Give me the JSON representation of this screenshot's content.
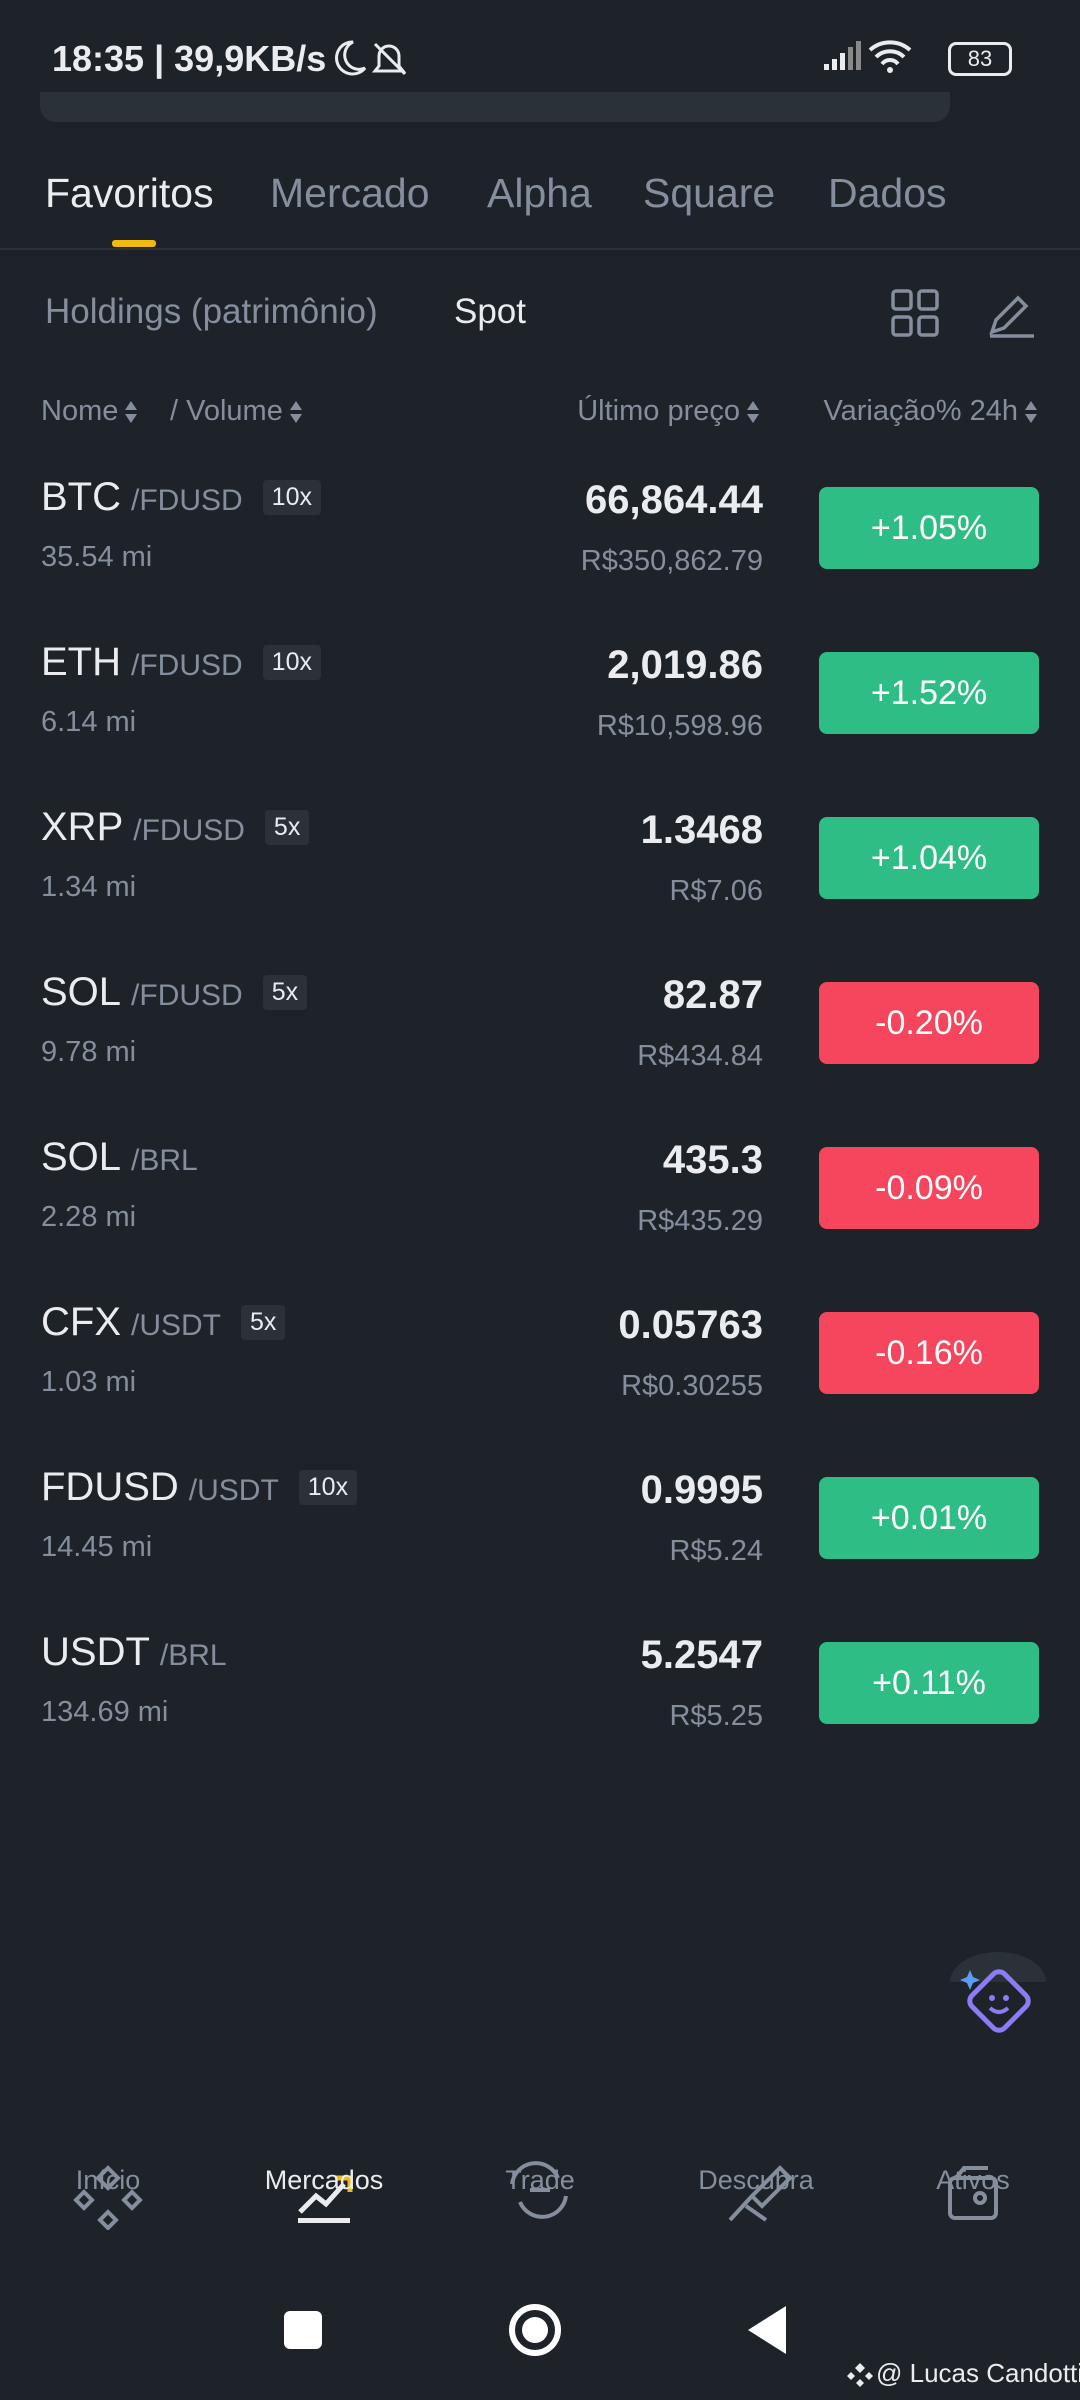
{
  "status_bar": {
    "time_speed": "18:35 | 39,9KB/s",
    "battery": "83"
  },
  "tabs": [
    "Favoritos",
    "Mercado",
    "Alpha",
    "Square",
    "Dados"
  ],
  "subtabs": [
    "Holdings (patrimônio)",
    "Spot"
  ],
  "columns": {
    "name": "Nome",
    "volume": "/ Volume",
    "price": "Último preço",
    "change": "Variação% 24h"
  },
  "rows": [
    {
      "base": "BTC",
      "quote": "/FDUSD",
      "leverage": "10x",
      "volume": "35.54 mi",
      "price": "66,864.44",
      "fiat": "R$350,862.79",
      "change": "+1.05%"
    },
    {
      "base": "ETH",
      "quote": "/FDUSD",
      "leverage": "10x",
      "volume": "6.14 mi",
      "price": "2,019.86",
      "fiat": "R$10,598.96",
      "change": "+1.52%"
    },
    {
      "base": "XRP",
      "quote": "/FDUSD",
      "leverage": "5x",
      "volume": "1.34 mi",
      "price": "1.3468",
      "fiat": "R$7.06",
      "change": "+1.04%"
    },
    {
      "base": "SOL",
      "quote": "/FDUSD",
      "leverage": "5x",
      "volume": "9.78 mi",
      "price": "82.87",
      "fiat": "R$434.84",
      "change": "-0.20%"
    },
    {
      "base": "SOL",
      "quote": "/BRL",
      "volume": "2.28 mi",
      "price": "435.3",
      "fiat": "R$435.29",
      "change": "-0.09%"
    },
    {
      "base": "CFX",
      "quote": "/USDT",
      "leverage": "5x",
      "volume": "1.03 mi",
      "price": "0.05763",
      "fiat": "R$0.30255",
      "change": "-0.16%"
    },
    {
      "base": "FDUSD",
      "quote": "/USDT",
      "leverage": "10x",
      "volume": "14.45 mi",
      "price": "0.9995",
      "fiat": "R$5.24",
      "change": "+0.01%"
    },
    {
      "base": "USDT",
      "quote": "/BRL",
      "volume": "134.69 mi",
      "price": "5.2547",
      "fiat": "R$5.25",
      "change": "+0.11%"
    }
  ],
  "bottom_nav": [
    "Início",
    "Mercados",
    "Trade",
    "Descubra",
    "Ativos"
  ],
  "watermark": "@ Lucas Candotti"
}
